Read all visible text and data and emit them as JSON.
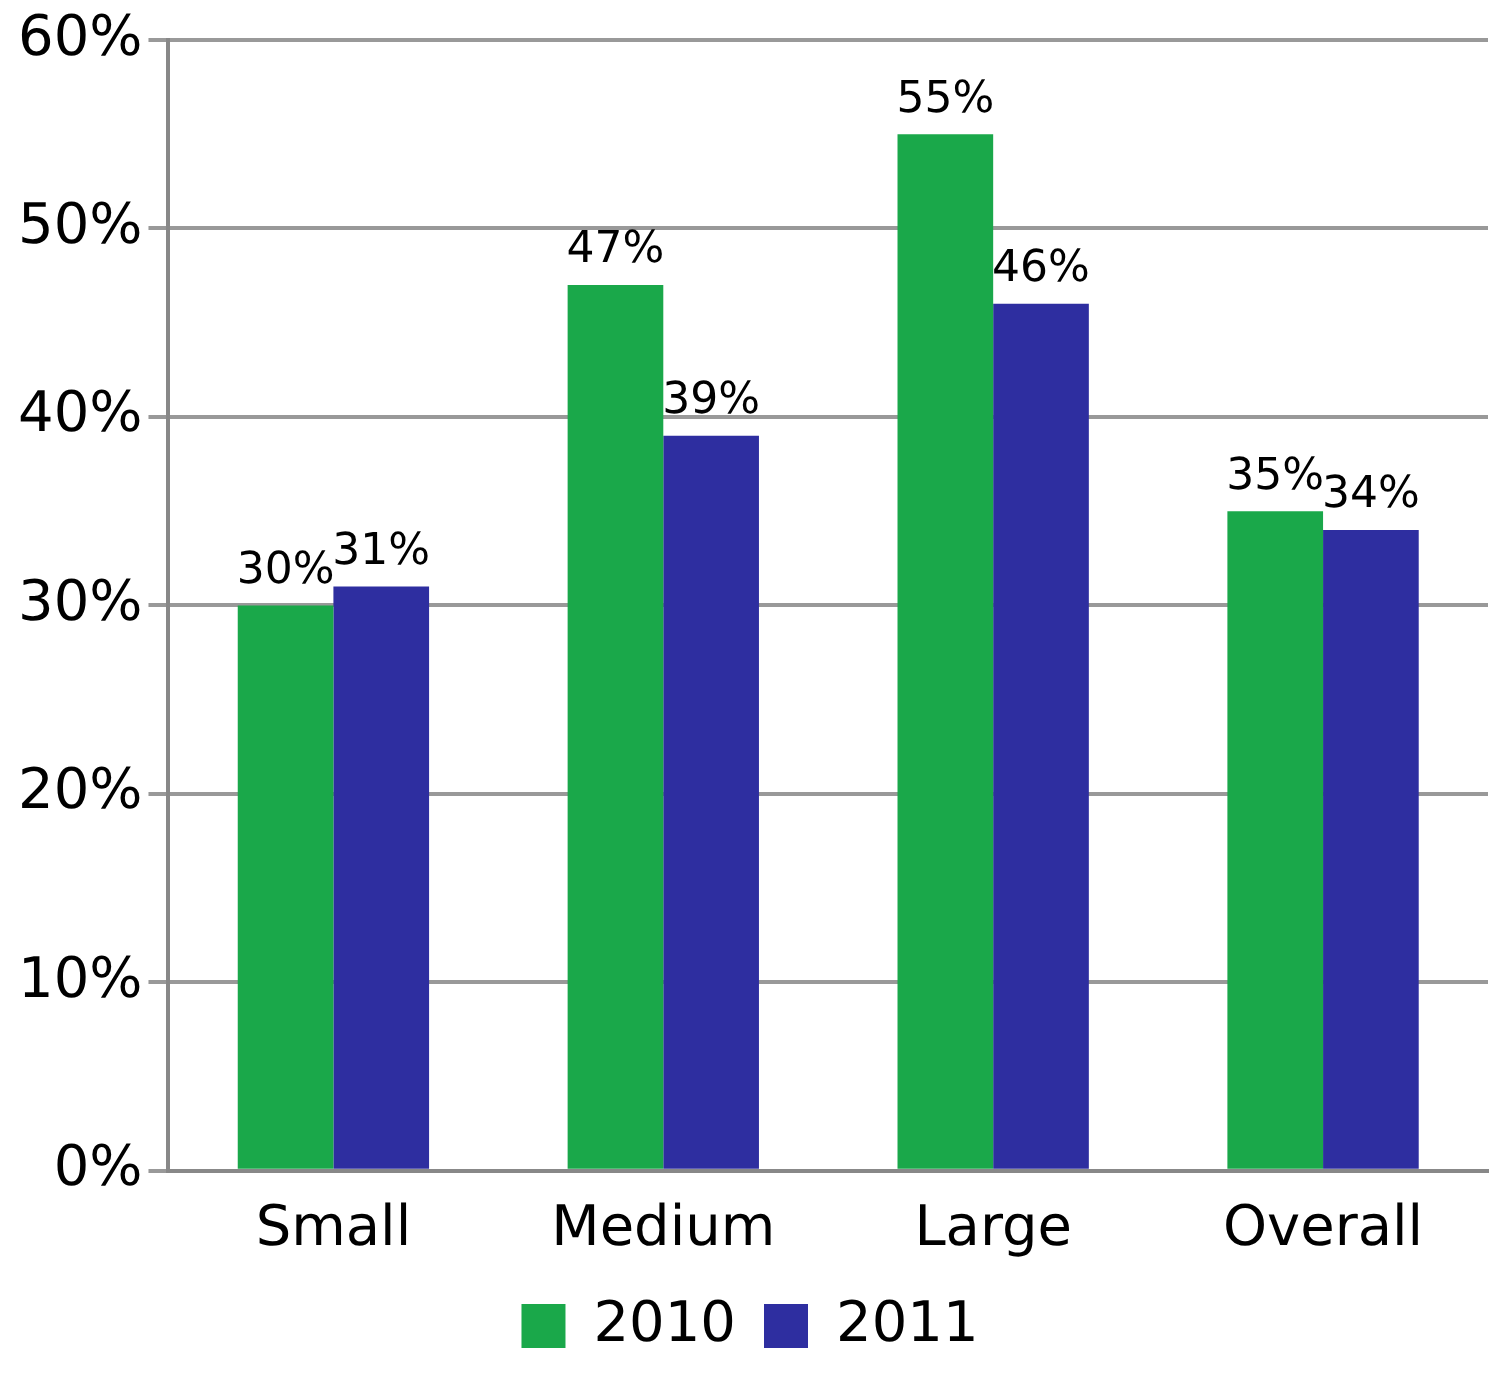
{
  "chart_data": {
    "type": "bar",
    "categories": [
      "Small",
      "Medium",
      "Large",
      "Overall"
    ],
    "series": [
      {
        "name": "2010",
        "color": "#1aa84a",
        "values": [
          30,
          47,
          55,
          35
        ],
        "value_labels": [
          "30%",
          "47%",
          "55%",
          "35%"
        ]
      },
      {
        "name": "2011",
        "color": "#2e2ea0",
        "values": [
          31,
          39,
          46,
          34
        ],
        "value_labels": [
          "31%",
          "39%",
          "46%",
          "34%"
        ]
      }
    ],
    "ylim": [
      0,
      60
    ],
    "yticks": [
      {
        "value": 0,
        "label": "0%"
      },
      {
        "value": 10,
        "label": "10%"
      },
      {
        "value": 20,
        "label": "20%"
      },
      {
        "value": 30,
        "label": "30%"
      },
      {
        "value": 40,
        "label": "40%"
      },
      {
        "value": 50,
        "label": "50%"
      },
      {
        "value": 60,
        "label": "60%"
      }
    ],
    "grid": "y",
    "legend": "bottom"
  }
}
